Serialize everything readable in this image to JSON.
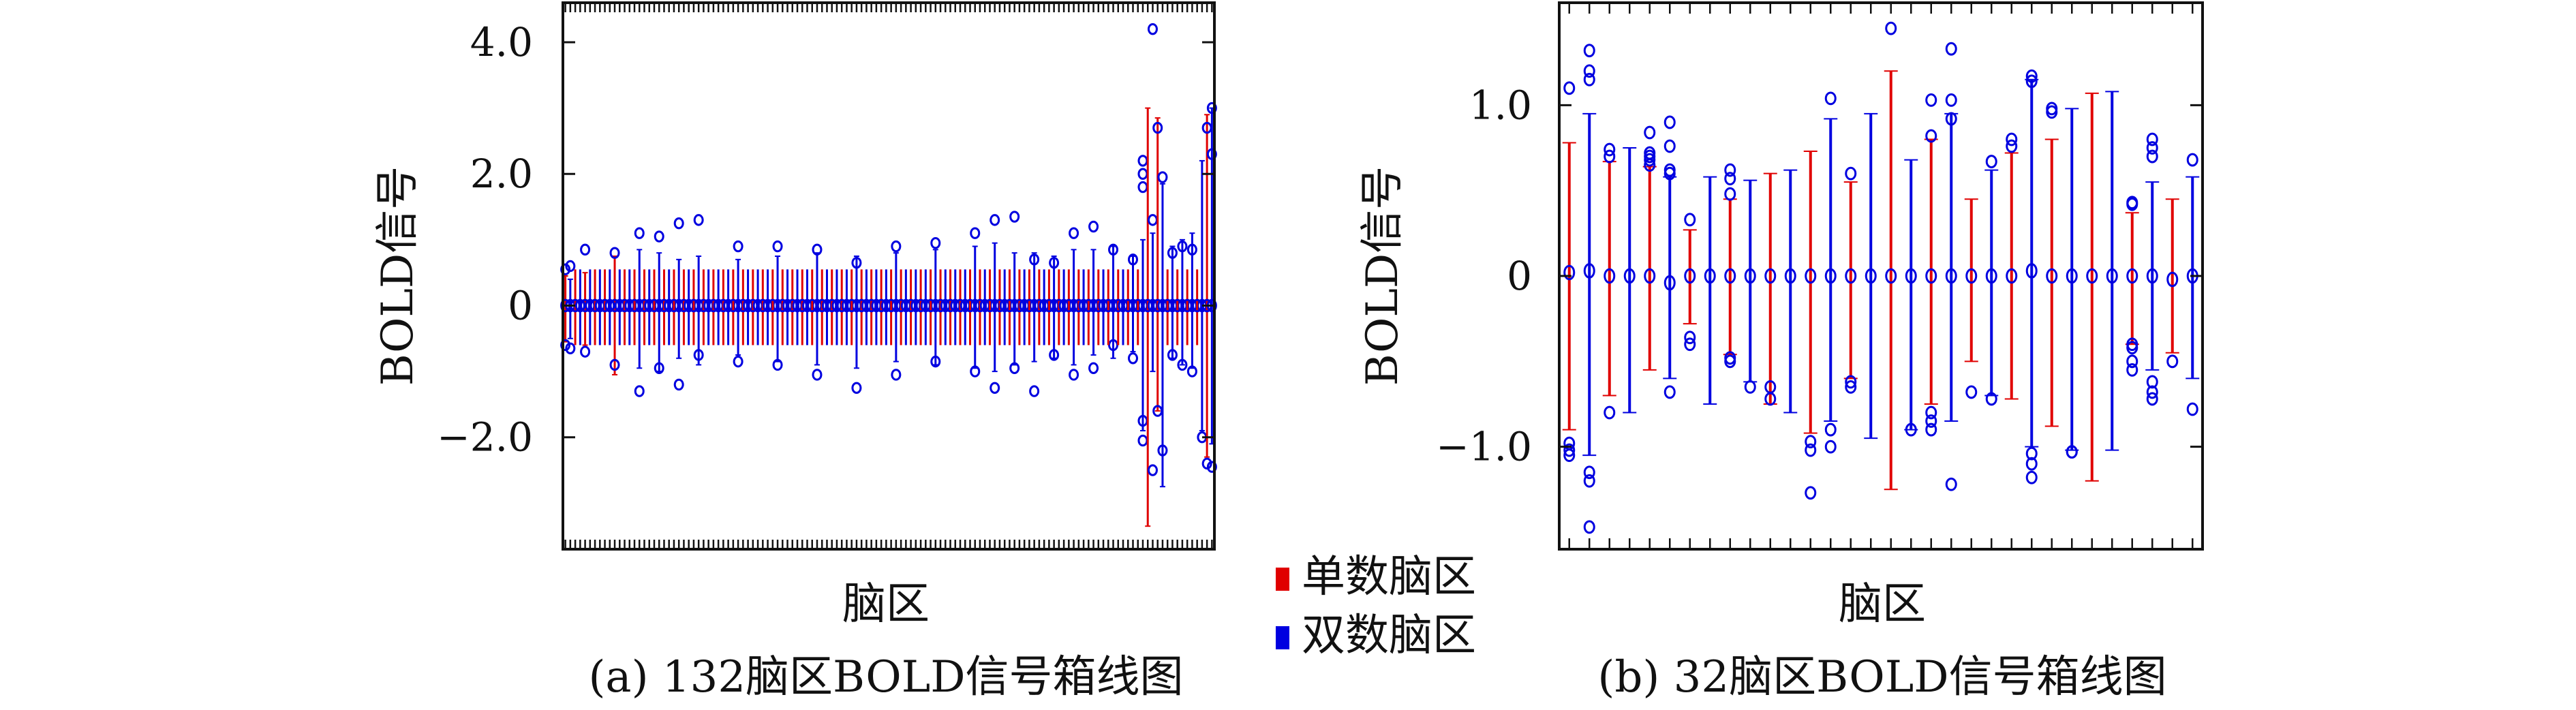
{
  "figure": {
    "legend": {
      "items": [
        {
          "label": "单数脑区",
          "color": "#e00000"
        },
        {
          "label": "双数脑区",
          "color": "#0000e0"
        }
      ]
    }
  },
  "chart_data": [
    {
      "type": "box",
      "caption": "(a) 132脑区BOLD信号箱线图",
      "xlabel": "脑区",
      "ylabel": "BOLD信号",
      "ylim": [
        -3.7,
        4.6
      ],
      "yticks": [
        4.0,
        2.0,
        0,
        -2.0
      ],
      "ytick_labels": [
        "4.0",
        "2.0",
        "0",
        "−2.0"
      ],
      "n_regions": 132,
      "series_colors": {
        "odd": "#e00000",
        "even": "#0000e0"
      },
      "regions": [
        {
          "region": 1,
          "median": 0.0,
          "low": -0.55,
          "high": 0.45,
          "outliers": [
            0.55,
            -0.6
          ]
        },
        {
          "region": 2,
          "median": 0.0,
          "low": -0.5,
          "high": 0.4,
          "outliers": [
            0.6,
            -0.65
          ]
        },
        {
          "region": 5,
          "median": 0.0,
          "low": -0.6,
          "high": 0.5,
          "outliers": [
            0.85,
            -0.7
          ]
        },
        {
          "region": 11,
          "median": 0.0,
          "low": -1.05,
          "high": 0.75,
          "outliers": [
            0.8,
            -0.9
          ]
        },
        {
          "region": 16,
          "median": 0.0,
          "low": -0.95,
          "high": 0.85,
          "outliers": [
            1.1,
            -1.3
          ]
        },
        {
          "region": 20,
          "median": 0.0,
          "low": -1.0,
          "high": 0.8,
          "outliers": [
            1.05,
            -0.95
          ]
        },
        {
          "region": 24,
          "median": 0.0,
          "low": -0.8,
          "high": 0.7,
          "outliers": [
            1.25,
            -1.2
          ]
        },
        {
          "region": 28,
          "median": 0.0,
          "low": -0.9,
          "high": 0.75,
          "outliers": [
            1.3,
            -0.75
          ]
        },
        {
          "region": 36,
          "median": 0.0,
          "low": -0.75,
          "high": 0.7,
          "outliers": [
            0.9,
            -0.85
          ]
        },
        {
          "region": 44,
          "median": 0.0,
          "low": -0.85,
          "high": 0.75,
          "outliers": [
            0.9,
            -0.9
          ]
        },
        {
          "region": 52,
          "median": 0.0,
          "low": -0.9,
          "high": 0.8,
          "outliers": [
            0.85,
            -1.05
          ]
        },
        {
          "region": 60,
          "median": 0.0,
          "low": -0.95,
          "high": 0.75,
          "outliers": [
            0.65,
            -1.25
          ]
        },
        {
          "region": 68,
          "median": 0.0,
          "low": -0.85,
          "high": 0.8,
          "outliers": [
            0.9,
            -1.05
          ]
        },
        {
          "region": 76,
          "median": 0.0,
          "low": -0.9,
          "high": 0.85,
          "outliers": [
            0.95,
            -0.85
          ]
        },
        {
          "region": 84,
          "median": 0.0,
          "low": -0.95,
          "high": 0.9,
          "outliers": [
            1.1,
            -1.0
          ]
        },
        {
          "region": 88,
          "median": 0.0,
          "low": -1.0,
          "high": 0.95,
          "outliers": [
            1.3,
            -1.25
          ]
        },
        {
          "region": 92,
          "median": 0.0,
          "low": -0.9,
          "high": 0.8,
          "outliers": [
            1.35,
            -0.95
          ]
        },
        {
          "region": 96,
          "median": 0.0,
          "low": -0.85,
          "high": 0.8,
          "outliers": [
            0.7,
            -1.3
          ]
        },
        {
          "region": 100,
          "median": 0.0,
          "low": -0.8,
          "high": 0.75,
          "outliers": [
            0.65,
            -0.75
          ]
        },
        {
          "region": 104,
          "median": 0.0,
          "low": -0.9,
          "high": 0.85,
          "outliers": [
            1.1,
            -1.05
          ]
        },
        {
          "region": 108,
          "median": 0.0,
          "low": -0.75,
          "high": 0.85,
          "outliers": [
            1.2,
            -0.95
          ]
        },
        {
          "region": 112,
          "median": 0.0,
          "low": -0.8,
          "high": 0.9,
          "outliers": [
            0.85,
            -0.6
          ]
        },
        {
          "region": 116,
          "median": 0.0,
          "low": -0.7,
          "high": 0.75,
          "outliers": [
            0.7,
            -0.8
          ]
        },
        {
          "region": 118,
          "median": 0.0,
          "low": -1.9,
          "high": 1.0,
          "outliers": [
            2.2,
            2.0,
            1.8,
            -1.75,
            -2.05
          ]
        },
        {
          "region": 119,
          "median": 0.0,
          "low": -3.35,
          "high": 3.0,
          "outliers": []
        },
        {
          "region": 120,
          "median": 0.0,
          "low": -1.0,
          "high": 1.1,
          "outliers": [
            4.2,
            -2.5,
            1.3
          ]
        },
        {
          "region": 121,
          "median": 0.0,
          "low": -1.6,
          "high": 2.85,
          "outliers": [
            2.7,
            -1.6
          ]
        },
        {
          "region": 122,
          "median": 0.0,
          "low": -2.75,
          "high": 1.85,
          "outliers": [
            -2.2,
            1.95
          ]
        },
        {
          "region": 124,
          "median": 0.0,
          "low": -0.8,
          "high": 0.9,
          "outliers": [
            0.8,
            -0.75
          ]
        },
        {
          "region": 126,
          "median": 0.0,
          "low": -0.9,
          "high": 1.0,
          "outliers": [
            0.9,
            -0.9
          ]
        },
        {
          "region": 128,
          "median": 0.0,
          "low": -0.95,
          "high": 1.1,
          "outliers": [
            0.85,
            -1.0
          ]
        },
        {
          "region": 130,
          "median": 0.0,
          "low": -1.9,
          "high": 2.2,
          "outliers": [
            -2.0
          ]
        },
        {
          "region": 131,
          "median": 0.0,
          "low": -2.3,
          "high": 2.9,
          "outliers": [
            -2.4,
            2.7
          ]
        },
        {
          "region": 132,
          "median": 0.0,
          "low": -2.1,
          "high": 3.0,
          "outliers": [
            3.0,
            -2.45,
            2.3
          ]
        }
      ]
    },
    {
      "type": "box",
      "caption": "(b) 32脑区BOLD信号箱线图",
      "xlabel": "脑区",
      "ylabel": "BOLD信号",
      "ylim": [
        -1.6,
        1.6
      ],
      "yticks": [
        1.0,
        0,
        -1.0
      ],
      "ytick_labels": [
        "1.0",
        "0",
        "−1.0"
      ],
      "n_regions": 32,
      "series_colors": {
        "odd": "#e00000",
        "even": "#0000e0"
      },
      "regions": [
        {
          "region": 1,
          "median": 0.02,
          "low": -0.9,
          "high": 0.78,
          "outliers": [
            1.1,
            -0.98,
            -1.02,
            -1.05
          ]
        },
        {
          "region": 2,
          "median": 0.03,
          "low": -1.05,
          "high": 0.95,
          "outliers": [
            1.32,
            1.2,
            1.15,
            -1.15,
            -1.2,
            -1.47
          ]
        },
        {
          "region": 3,
          "median": 0.0,
          "low": -0.7,
          "high": 0.67,
          "outliers": [
            0.74,
            0.7,
            -0.8
          ]
        },
        {
          "region": 4,
          "median": 0.0,
          "low": -0.8,
          "high": 0.75,
          "outliers": []
        },
        {
          "region": 5,
          "median": 0.0,
          "low": -0.55,
          "high": 0.64,
          "outliers": [
            0.84,
            0.72,
            0.68,
            0.65,
            0.7
          ]
        },
        {
          "region": 6,
          "median": -0.04,
          "low": -0.6,
          "high": 0.58,
          "outliers": [
            0.9,
            0.76,
            0.62,
            0.6,
            -0.68
          ]
        },
        {
          "region": 7,
          "median": 0.0,
          "low": -0.28,
          "high": 0.27,
          "outliers": [
            0.33,
            -0.36,
            -0.4
          ]
        },
        {
          "region": 8,
          "median": 0.0,
          "low": -0.75,
          "high": 0.58,
          "outliers": []
        },
        {
          "region": 9,
          "median": 0.0,
          "low": -0.46,
          "high": 0.45,
          "outliers": [
            0.62,
            0.57,
            0.48,
            -0.48,
            -0.5
          ]
        },
        {
          "region": 10,
          "median": 0.0,
          "low": -0.62,
          "high": 0.56,
          "outliers": [
            -0.65
          ]
        },
        {
          "region": 11,
          "median": 0.0,
          "low": -0.75,
          "high": 0.6,
          "outliers": [
            -0.65,
            -0.72
          ]
        },
        {
          "region": 12,
          "median": 0.0,
          "low": -0.8,
          "high": 0.62,
          "outliers": []
        },
        {
          "region": 13,
          "median": 0.0,
          "low": -0.92,
          "high": 0.73,
          "outliers": [
            -0.97,
            -1.27,
            -1.02
          ]
        },
        {
          "region": 14,
          "median": 0.0,
          "low": -0.85,
          "high": 0.92,
          "outliers": [
            1.04,
            -0.9,
            -1.0
          ]
        },
        {
          "region": 15,
          "median": 0.0,
          "low": -0.6,
          "high": 0.55,
          "outliers": [
            0.6,
            -0.62,
            -0.65
          ]
        },
        {
          "region": 16,
          "median": 0.0,
          "low": -0.95,
          "high": 0.95,
          "outliers": []
        },
        {
          "region": 17,
          "median": 0.0,
          "low": -1.25,
          "high": 1.2,
          "outliers": [
            1.45
          ]
        },
        {
          "region": 18,
          "median": 0.0,
          "low": -0.9,
          "high": 0.68,
          "outliers": [
            -0.9
          ]
        },
        {
          "region": 19,
          "median": 0.0,
          "low": -0.75,
          "high": 0.8,
          "outliers": [
            1.03,
            0.82,
            -0.8,
            -0.85,
            -0.9
          ]
        },
        {
          "region": 20,
          "median": 0.0,
          "low": -0.85,
          "high": 0.95,
          "outliers": [
            1.33,
            1.03,
            0.92,
            -1.22
          ]
        },
        {
          "region": 21,
          "median": 0.0,
          "low": -0.5,
          "high": 0.45,
          "outliers": [
            -0.68
          ]
        },
        {
          "region": 22,
          "median": 0.0,
          "low": -0.7,
          "high": 0.62,
          "outliers": [
            0.67,
            -0.72
          ]
        },
        {
          "region": 23,
          "median": 0.0,
          "low": -0.72,
          "high": 0.72,
          "outliers": [
            0.8,
            0.76
          ]
        },
        {
          "region": 24,
          "median": 0.03,
          "low": -1.0,
          "high": 1.15,
          "outliers": [
            1.17,
            1.14,
            -1.04,
            -1.1,
            -1.18
          ]
        },
        {
          "region": 25,
          "median": 0.0,
          "low": -0.88,
          "high": 0.8,
          "outliers": [
            0.98,
            0.96
          ]
        },
        {
          "region": 26,
          "median": 0.0,
          "low": -1.02,
          "high": 0.98,
          "outliers": [
            -1.03,
            -1.03
          ]
        },
        {
          "region": 27,
          "median": 0.0,
          "low": -1.2,
          "high": 1.07,
          "outliers": []
        },
        {
          "region": 28,
          "median": 0.0,
          "low": -1.02,
          "high": 1.08,
          "outliers": []
        },
        {
          "region": 29,
          "median": 0.0,
          "low": -0.4,
          "high": 0.37,
          "outliers": [
            0.43,
            0.42,
            -0.4,
            -0.42,
            -0.5,
            -0.55
          ]
        },
        {
          "region": 30,
          "median": 0.0,
          "low": -0.55,
          "high": 0.55,
          "outliers": [
            0.8,
            0.75,
            0.7,
            -0.62,
            -0.68,
            -0.72
          ]
        },
        {
          "region": 31,
          "median": -0.02,
          "low": -0.45,
          "high": 0.45,
          "outliers": [
            -0.5
          ]
        },
        {
          "region": 32,
          "median": 0.0,
          "low": -0.6,
          "high": 0.58,
          "outliers": [
            0.68,
            -0.78
          ]
        }
      ]
    }
  ]
}
